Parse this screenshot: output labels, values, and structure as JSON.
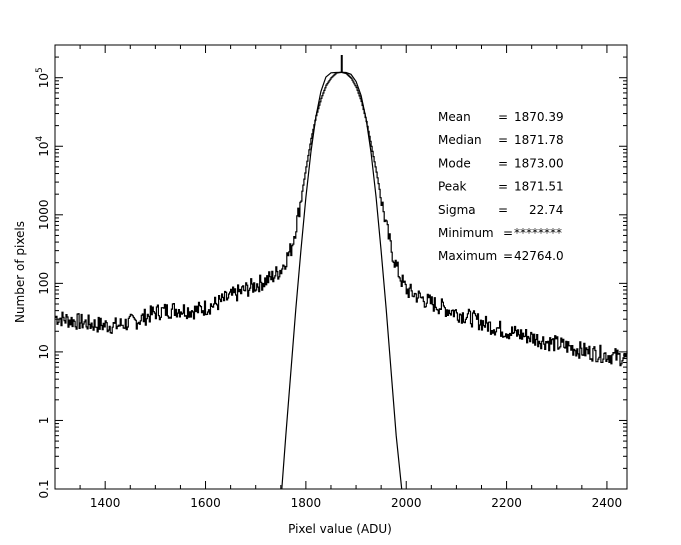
{
  "chart_data": {
    "type": "line",
    "title": "",
    "xlabel": "Pixel value (ADU)",
    "ylabel": "Number of pixels",
    "xlim": [
      1300,
      2440
    ],
    "ylim": [
      0.1,
      300000
    ],
    "yscale": "log",
    "x_ticks": [
      1400,
      1600,
      1800,
      2000,
      2200,
      2400
    ],
    "x_tick_labels": [
      "1400",
      "1600",
      "1800",
      "2000",
      "2200",
      "2400"
    ],
    "y_ticks": [
      0.1,
      1,
      10,
      100,
      1000,
      10000,
      100000
    ],
    "y_tick_labels": [
      {
        "base": "0.1",
        "exp": ""
      },
      {
        "base": "1",
        "exp": ""
      },
      {
        "base": "10",
        "exp": ""
      },
      {
        "base": "100",
        "exp": ""
      },
      {
        "base": "1000",
        "exp": ""
      },
      {
        "base": "10",
        "exp": "4"
      },
      {
        "base": "10",
        "exp": "5"
      }
    ],
    "series": [
      {
        "name": "histogram",
        "kind": "step",
        "x": [
          1300,
          1340,
          1380,
          1420,
          1460,
          1500,
          1540,
          1580,
          1620,
          1660,
          1700,
          1730,
          1750,
          1770,
          1780,
          1790,
          1800,
          1810,
          1820,
          1830,
          1840,
          1850,
          1860,
          1870,
          1880,
          1890,
          1900,
          1910,
          1920,
          1930,
          1940,
          1950,
          1960,
          1970,
          1980,
          1990,
          2000,
          2040,
          2080,
          2120,
          2160,
          2200,
          2240,
          2280,
          2320,
          2360,
          2400,
          2440
        ],
        "values": [
          32,
          28,
          25,
          24,
          28,
          38,
          42,
          40,
          50,
          70,
          95,
          120,
          160,
          320,
          700,
          1800,
          5000,
          13000,
          28000,
          50000,
          78000,
          100000,
          117000,
          120000,
          115000,
          98000,
          72000,
          45000,
          23000,
          10000,
          4200,
          1600,
          650,
          300,
          170,
          110,
          80,
          55,
          42,
          33,
          25,
          20,
          17,
          14,
          12,
          10,
          9,
          8
        ]
      },
      {
        "name": "gaussian fit",
        "kind": "line",
        "x": [
          1752,
          1760,
          1770,
          1780,
          1790,
          1800,
          1810,
          1820,
          1830,
          1840,
          1850,
          1860,
          1871.5,
          1880,
          1890,
          1900,
          1910,
          1920,
          1930,
          1940,
          1950,
          1960,
          1970,
          1980,
          1991
        ],
        "values": [
          0.1,
          0.6,
          5,
          42,
          300,
          1800,
          8200,
          27000,
          63000,
          102000,
          118000,
          119000,
          120000,
          119000,
          112000,
          88000,
          55000,
          25000,
          8000,
          1800,
          300,
          42,
          5,
          0.6,
          0.1
        ]
      }
    ],
    "peak_marker_x": 1871.51,
    "stats": [
      {
        "label": "Mean",
        "separator": "=",
        "value": "1870.39"
      },
      {
        "label": "Median",
        "separator": "=",
        "value": "1871.78"
      },
      {
        "label": "Mode",
        "separator": "=",
        "value": "1873.00"
      },
      {
        "label": "Peak",
        "separator": "=",
        "value": "1871.51"
      },
      {
        "label": "Sigma",
        "separator": "=",
        "value": "22.74"
      },
      {
        "label": "Minimum",
        "separator": "=",
        "value": "********"
      },
      {
        "label": "Maximum",
        "separator": "=",
        "value": "42764.0"
      }
    ]
  }
}
